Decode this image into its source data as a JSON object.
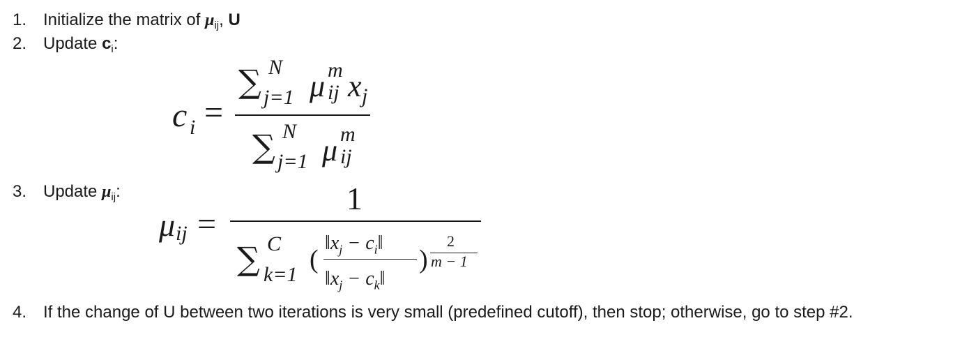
{
  "steps": [
    {
      "num": "1.",
      "text": "Initialize the matrix of ",
      "sym": "μ",
      "sub": "ij",
      "after": ", ",
      "bold": "U"
    },
    {
      "num": "2.",
      "text": "Update ",
      "bold": "c",
      "sub": "i",
      "after": ":"
    },
    {
      "num": "3.",
      "text": "Update ",
      "sym": "μ",
      "sub": "ij",
      "after": ":"
    },
    {
      "num": "4.",
      "text": "If the change of U between two iterations is very small (predefined cutoff), then stop; otherwise, go to step #2."
    }
  ],
  "eq1": {
    "lhs": "c",
    "lhs_sub": "i",
    "eq": "=",
    "sum": "∑",
    "upper": "N",
    "lower": "j=1",
    "mu": "μ",
    "mu_sup": "m",
    "mu_sub": "ij",
    "x": "x",
    "x_sub": "j"
  },
  "eq2": {
    "lhs": "μ",
    "lhs_sub": "ij",
    "eq": "=",
    "one": "1",
    "sum": "∑",
    "upper": "C",
    "lower": "k=1",
    "lparen": "(",
    "rparen": ")",
    "num_expr": "‖x",
    "num_sub": "j",
    "num_mid": " − c",
    "num_sub2": "i",
    "num_end": "‖",
    "den_expr": "‖x",
    "den_sub": "j",
    "den_mid": " − c",
    "den_sub2": "k",
    "den_end": "‖",
    "exp_num": "2",
    "exp_den": "m − 1"
  }
}
